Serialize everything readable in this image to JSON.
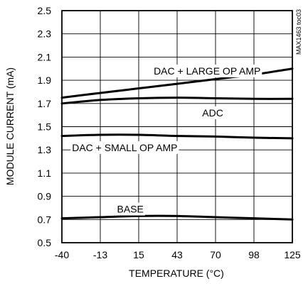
{
  "chart_data": {
    "type": "line",
    "xlabel": "TEMPERATURE (°C)",
    "ylabel": "MODULE CURRENT (mA)",
    "figure_id": "MAX1463 toc03",
    "x_ticks": [
      "-40",
      "-13",
      "15",
      "43",
      "70",
      "98",
      "125"
    ],
    "y_ticks": [
      "0.5",
      "0.7",
      "0.9",
      "1.1",
      "1.3",
      "1.5",
      "1.7",
      "1.9",
      "2.1",
      "2.3",
      "2.5"
    ],
    "xlim": [
      -40,
      125
    ],
    "ylim": [
      0.5,
      2.5
    ],
    "grid": true,
    "series": [
      {
        "name": "DAC + LARGE OP AMP",
        "x": [
          -40,
          -13,
          15,
          43,
          70,
          98,
          125
        ],
        "y": [
          1.75,
          1.79,
          1.83,
          1.87,
          1.91,
          1.95,
          2.0
        ]
      },
      {
        "name": "ADC",
        "x": [
          -40,
          -13,
          15,
          43,
          70,
          98,
          125
        ],
        "y": [
          1.7,
          1.73,
          1.745,
          1.75,
          1.745,
          1.74,
          1.74
        ]
      },
      {
        "name": "DAC + SMALL OP AMP",
        "x": [
          -40,
          -13,
          15,
          43,
          70,
          98,
          125
        ],
        "y": [
          1.42,
          1.43,
          1.43,
          1.42,
          1.415,
          1.405,
          1.4
        ]
      },
      {
        "name": "BASE",
        "x": [
          -40,
          -13,
          15,
          43,
          70,
          98,
          125
        ],
        "y": [
          0.71,
          0.72,
          0.73,
          0.73,
          0.72,
          0.71,
          0.7
        ]
      }
    ],
    "annotations": [
      {
        "text": "DAC + LARGE OP AMP",
        "x": 64,
        "y": 1.98
      },
      {
        "text": "ADC",
        "x": 68,
        "y": 1.62
      },
      {
        "text": "DAC + SMALL OP AMP",
        "x": 5,
        "y": 1.32
      },
      {
        "text": "BASE",
        "x": 9,
        "y": 0.79
      }
    ]
  }
}
